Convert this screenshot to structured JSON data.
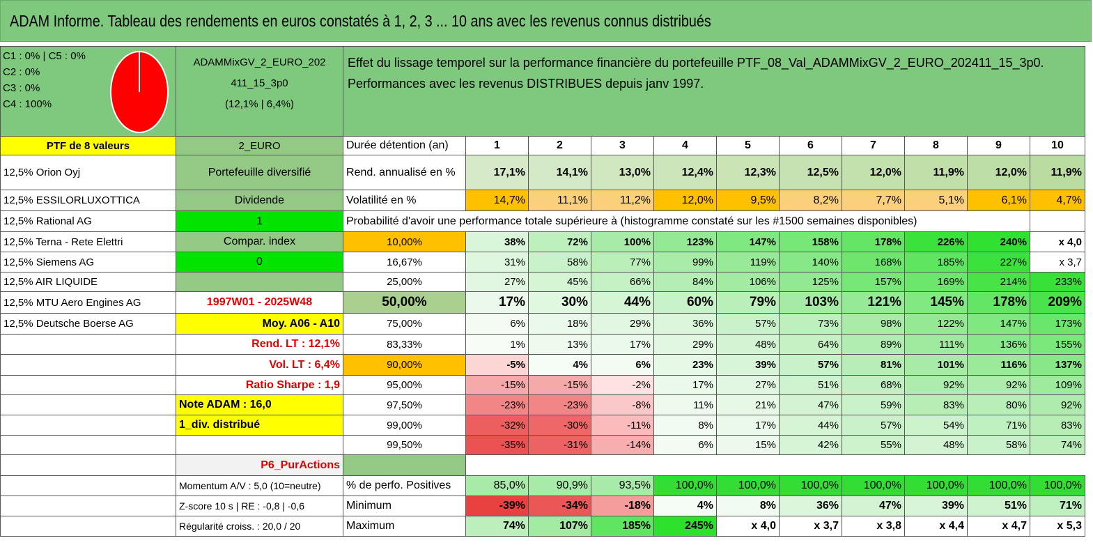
{
  "title": "ADAM Informe. Tableau des rendements en euros constatés à 1, 2, 3 ... 10 ans avec les revenus connus distribués",
  "colors": {
    "header_green": "#7ec97e",
    "bright_green": "#00e400",
    "yellow": "#ffff00",
    "orange": "#ffc000",
    "red_text": "#e00000"
  },
  "composition": {
    "c1c5": "C1 : 0% | C5 : 0%",
    "c2": "C2 : 0%",
    "c3": "C3 : 0%",
    "c4": "C4 : 100%",
    "pie_value_c4": 100
  },
  "portfolio": {
    "name_line1": "ADAMMixGV_2_EURO_202",
    "name_line2": "411_15_3p0",
    "name_line3": "(12,1% | 6,4%)",
    "description_line1": "Effet du lissage temporel sur la performance financière du portefeuille PTF_08_Val_ADAMMixGV_2_EURO_202411_15_3p0.",
    "description_line2": "Performances avec les revenus DISTRIBUES depuis janv 1997."
  },
  "left_header": "PTF de 8 valeurs",
  "holdings": [
    "12,5% Orion Oyj",
    "12,5% ESSILORLUXOTTICA",
    "12,5% Rational AG",
    "12,5% Terna - Rete Elettri",
    "12,5% Siemens AG",
    "12,5% AIR LIQUIDE",
    "12,5% MTU Aero Engines AG",
    "12,5% Deutsche Boerse AG"
  ],
  "info": [
    "2_EURO",
    "Portefeuille diversifié",
    "Dividende",
    "1",
    "Compar. index",
    "0",
    "",
    "1997W01 - 2025W48",
    "Moy. A06 - A10",
    "Rend. LT : 12,1%",
    "Vol. LT : 6,4%",
    "Ratio Sharpe : 1,9",
    "Note ADAM : 16,0",
    "1_div. distribué",
    "",
    "P6_PurActions",
    "Momentum A/V : 5,0 (10=neutre)",
    "Z-score 10 s | RE : -0,8 | -0,6",
    "Régularité croiss. : 20,0 / 20"
  ],
  "duration_label": "Durée détention (an)",
  "years": [
    "1",
    "2",
    "3",
    "4",
    "5",
    "6",
    "7",
    "8",
    "9",
    "10"
  ],
  "annual_return": {
    "label": "Rend. annualisé en %",
    "values": [
      "17,1%",
      "14,1%",
      "13,0%",
      "12,4%",
      "12,3%",
      "12,5%",
      "12,0%",
      "11,9%",
      "12,0%",
      "11,9%"
    ]
  },
  "volatility": {
    "label": "Volatilité en %",
    "values": [
      "14,7%",
      "11,1%",
      "11,2%",
      "12,0%",
      "9,5%",
      "8,2%",
      "7,7%",
      "5,1%",
      "6,1%",
      "4,7%"
    ]
  },
  "probability_title": "Probabilité d'avoir une performance totale supérieure à (histogramme constaté sur les #1500 semaines disponibles)",
  "probability_rows": [
    {
      "p": "10,00%",
      "v": [
        "38%",
        "72%",
        "100%",
        "123%",
        "147%",
        "158%",
        "178%",
        "226%",
        "240%",
        "x 4,0"
      ]
    },
    {
      "p": "16,67%",
      "v": [
        "31%",
        "58%",
        "77%",
        "99%",
        "119%",
        "140%",
        "168%",
        "185%",
        "227%",
        "x 3,7"
      ]
    },
    {
      "p": "25,00%",
      "v": [
        "27%",
        "45%",
        "66%",
        "84%",
        "106%",
        "125%",
        "157%",
        "169%",
        "214%",
        "233%"
      ]
    },
    {
      "p": "50,00%",
      "v": [
        "17%",
        "30%",
        "44%",
        "60%",
        "79%",
        "103%",
        "121%",
        "145%",
        "178%",
        "209%"
      ]
    },
    {
      "p": "75,00%",
      "v": [
        "6%",
        "18%",
        "29%",
        "36%",
        "57%",
        "73%",
        "98%",
        "122%",
        "147%",
        "173%"
      ]
    },
    {
      "p": "83,33%",
      "v": [
        "1%",
        "13%",
        "17%",
        "29%",
        "48%",
        "64%",
        "89%",
        "111%",
        "136%",
        "155%"
      ]
    },
    {
      "p": "90,00%",
      "v": [
        "-5%",
        "4%",
        "6%",
        "23%",
        "39%",
        "57%",
        "81%",
        "101%",
        "116%",
        "137%"
      ]
    },
    {
      "p": "95,00%",
      "v": [
        "-15%",
        "-15%",
        "-2%",
        "17%",
        "27%",
        "51%",
        "68%",
        "92%",
        "92%",
        "109%"
      ]
    },
    {
      "p": "97,50%",
      "v": [
        "-23%",
        "-23%",
        "-8%",
        "11%",
        "21%",
        "47%",
        "59%",
        "83%",
        "80%",
        "92%"
      ]
    },
    {
      "p": "99,00%",
      "v": [
        "-32%",
        "-30%",
        "-11%",
        "8%",
        "17%",
        "44%",
        "57%",
        "54%",
        "71%",
        "83%"
      ]
    },
    {
      "p": "99,50%",
      "v": [
        "-35%",
        "-31%",
        "-14%",
        "6%",
        "15%",
        "42%",
        "55%",
        "48%",
        "58%",
        "74%"
      ]
    }
  ],
  "positive": {
    "label": "% de perfo. Positives",
    "values": [
      "85,0%",
      "90,9%",
      "93,5%",
      "100,0%",
      "100,0%",
      "100,0%",
      "100,0%",
      "100,0%",
      "100,0%",
      "100,0%"
    ]
  },
  "minimum": {
    "label": "Minimum",
    "values": [
      "-39%",
      "-34%",
      "-18%",
      "4%",
      "8%",
      "36%",
      "47%",
      "39%",
      "51%",
      "71%"
    ]
  },
  "maximum": {
    "label": "Maximum",
    "values": [
      "74%",
      "107%",
      "185%",
      "245%",
      "x 4,0",
      "x 3,7",
      "x 3,8",
      "x 4,4",
      "x 4,7",
      "x 5,3"
    ]
  }
}
